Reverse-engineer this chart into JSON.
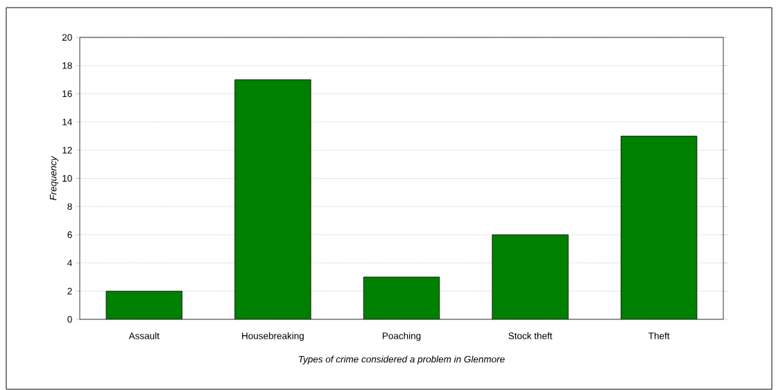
{
  "chart_data": {
    "type": "bar",
    "xlabel": "Types of crime considered a problem in Glenmore",
    "ylabel": "Frequency",
    "categories": [
      "Assault",
      "Housebreaking",
      "Poaching",
      "Stock theft",
      "Theft"
    ],
    "values": [
      2,
      17,
      3,
      6,
      13
    ],
    "color": "#008000",
    "ylim": [
      0,
      20
    ],
    "yticks": [
      0,
      2,
      4,
      6,
      8,
      10,
      12,
      14,
      16,
      18,
      20
    ],
    "grid": "y"
  }
}
